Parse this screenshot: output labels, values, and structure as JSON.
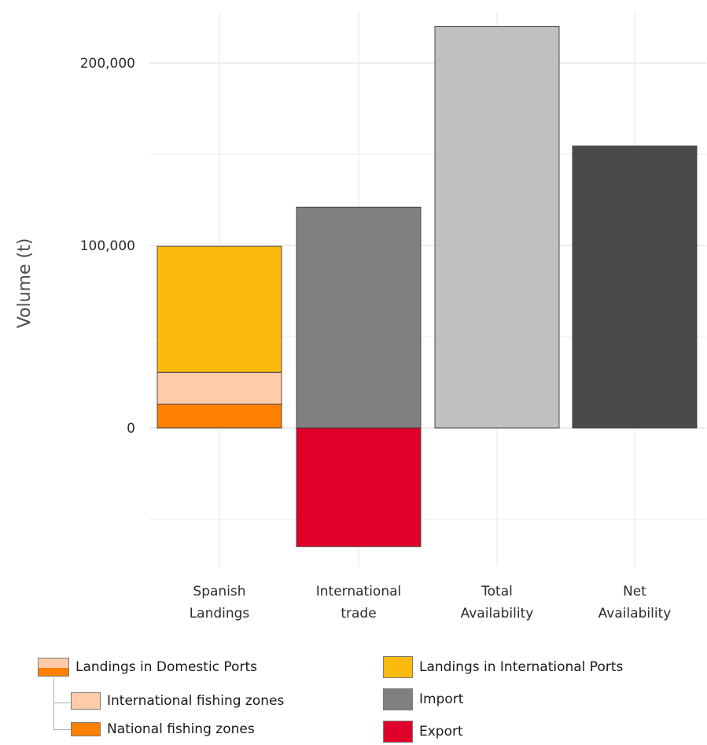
{
  "chart_data": {
    "type": "bar",
    "stacked": true,
    "ylabel": "Volume (t)",
    "ylim": [
      -70000,
      225000
    ],
    "yticks": [
      0,
      100000,
      200000
    ],
    "ytick_labels": [
      "0",
      "100,000",
      "200,000"
    ],
    "grid": true,
    "legend_position": "bottom",
    "categories": [
      {
        "line1": "Spanish",
        "line2": "Landings"
      },
      {
        "line1": "International",
        "line2": "trade"
      },
      {
        "line1": "Total",
        "line2": "Availability"
      },
      {
        "line1": "Net",
        "line2": "Availability"
      }
    ],
    "bars": [
      {
        "category": 0,
        "series": "National fishing zones",
        "start": 0,
        "end": 13000,
        "color": "#FF7F00"
      },
      {
        "category": 0,
        "series": "International fishing zones",
        "start": 13000,
        "end": 30500,
        "color": "#FFCBA8"
      },
      {
        "category": 0,
        "series": "Landings in International Ports",
        "start": 30500,
        "end": 99500,
        "color": "#FDBA0E"
      },
      {
        "category": 1,
        "series": "Import",
        "start": 0,
        "end": 121000,
        "color": "#808080"
      },
      {
        "category": 1,
        "series": "Export",
        "start": 0,
        "end": -65000,
        "color": "#E0002A"
      },
      {
        "category": 2,
        "series": "Total Availability",
        "start": 0,
        "end": 220000,
        "color": "#C0C0C0"
      },
      {
        "category": 3,
        "series": "Net Availability",
        "start": 0,
        "end": 154500,
        "color": "#4A4A4A"
      }
    ]
  },
  "legend": {
    "domestic_ports": "Landings in Domestic Ports",
    "international_zones": "International fishing zones",
    "national_zones": "National fishing zones",
    "international_ports": "Landings in International Ports",
    "import": "Import",
    "export": "Export"
  },
  "colors": {
    "national": "#FF7F00",
    "international_zones": "#FFCBA8",
    "international_ports": "#FDBA0E",
    "import": "#808080",
    "export": "#E0002A"
  }
}
